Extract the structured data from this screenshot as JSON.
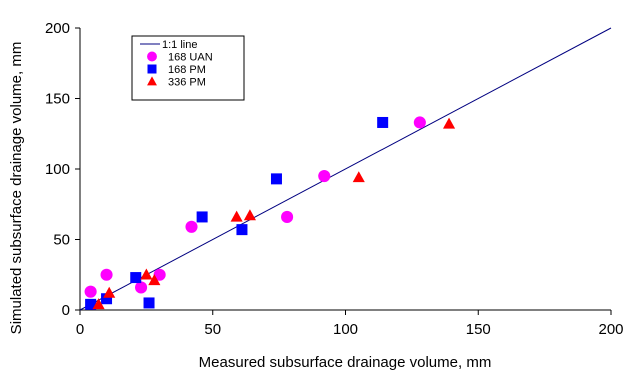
{
  "chart_data": {
    "type": "scatter",
    "title": "",
    "xlabel": "Measured subsurface drainage volume, mm",
    "ylabel": "Simulated subsurface drainage volume, mm",
    "xlim": [
      0,
      200
    ],
    "ylim": [
      0,
      200
    ],
    "xticks": [
      "0",
      "50",
      "100",
      "150",
      "200"
    ],
    "yticks": [
      "0",
      "50",
      "100",
      "150",
      "200"
    ],
    "grid": false,
    "legend_position": "top-left",
    "reference_line": {
      "name": "1:1 line",
      "color": "#000080",
      "from": [
        0,
        0
      ],
      "to": [
        200,
        200
      ]
    },
    "series": [
      {
        "name": "168 UAN",
        "marker": "circle",
        "color": "#ff00ff",
        "points": [
          [
            4,
            13
          ],
          [
            10,
            25
          ],
          [
            23,
            16
          ],
          [
            30,
            25
          ],
          [
            42,
            59
          ],
          [
            78,
            66
          ],
          [
            92,
            95
          ],
          [
            128,
            133
          ]
        ]
      },
      {
        "name": "168 PM",
        "marker": "square",
        "color": "#0000ff",
        "points": [
          [
            4,
            4
          ],
          [
            10,
            8
          ],
          [
            21,
            23
          ],
          [
            26,
            5
          ],
          [
            46,
            66
          ],
          [
            61,
            57
          ],
          [
            74,
            93
          ],
          [
            114,
            133
          ]
        ]
      },
      {
        "name": "336 PM",
        "marker": "triangle",
        "color": "#ff0000",
        "points": [
          [
            7,
            4
          ],
          [
            11,
            12
          ],
          [
            25,
            25
          ],
          [
            28,
            21
          ],
          [
            59,
            66
          ],
          [
            64,
            67
          ],
          [
            105,
            94
          ],
          [
            139,
            132
          ]
        ]
      }
    ]
  }
}
